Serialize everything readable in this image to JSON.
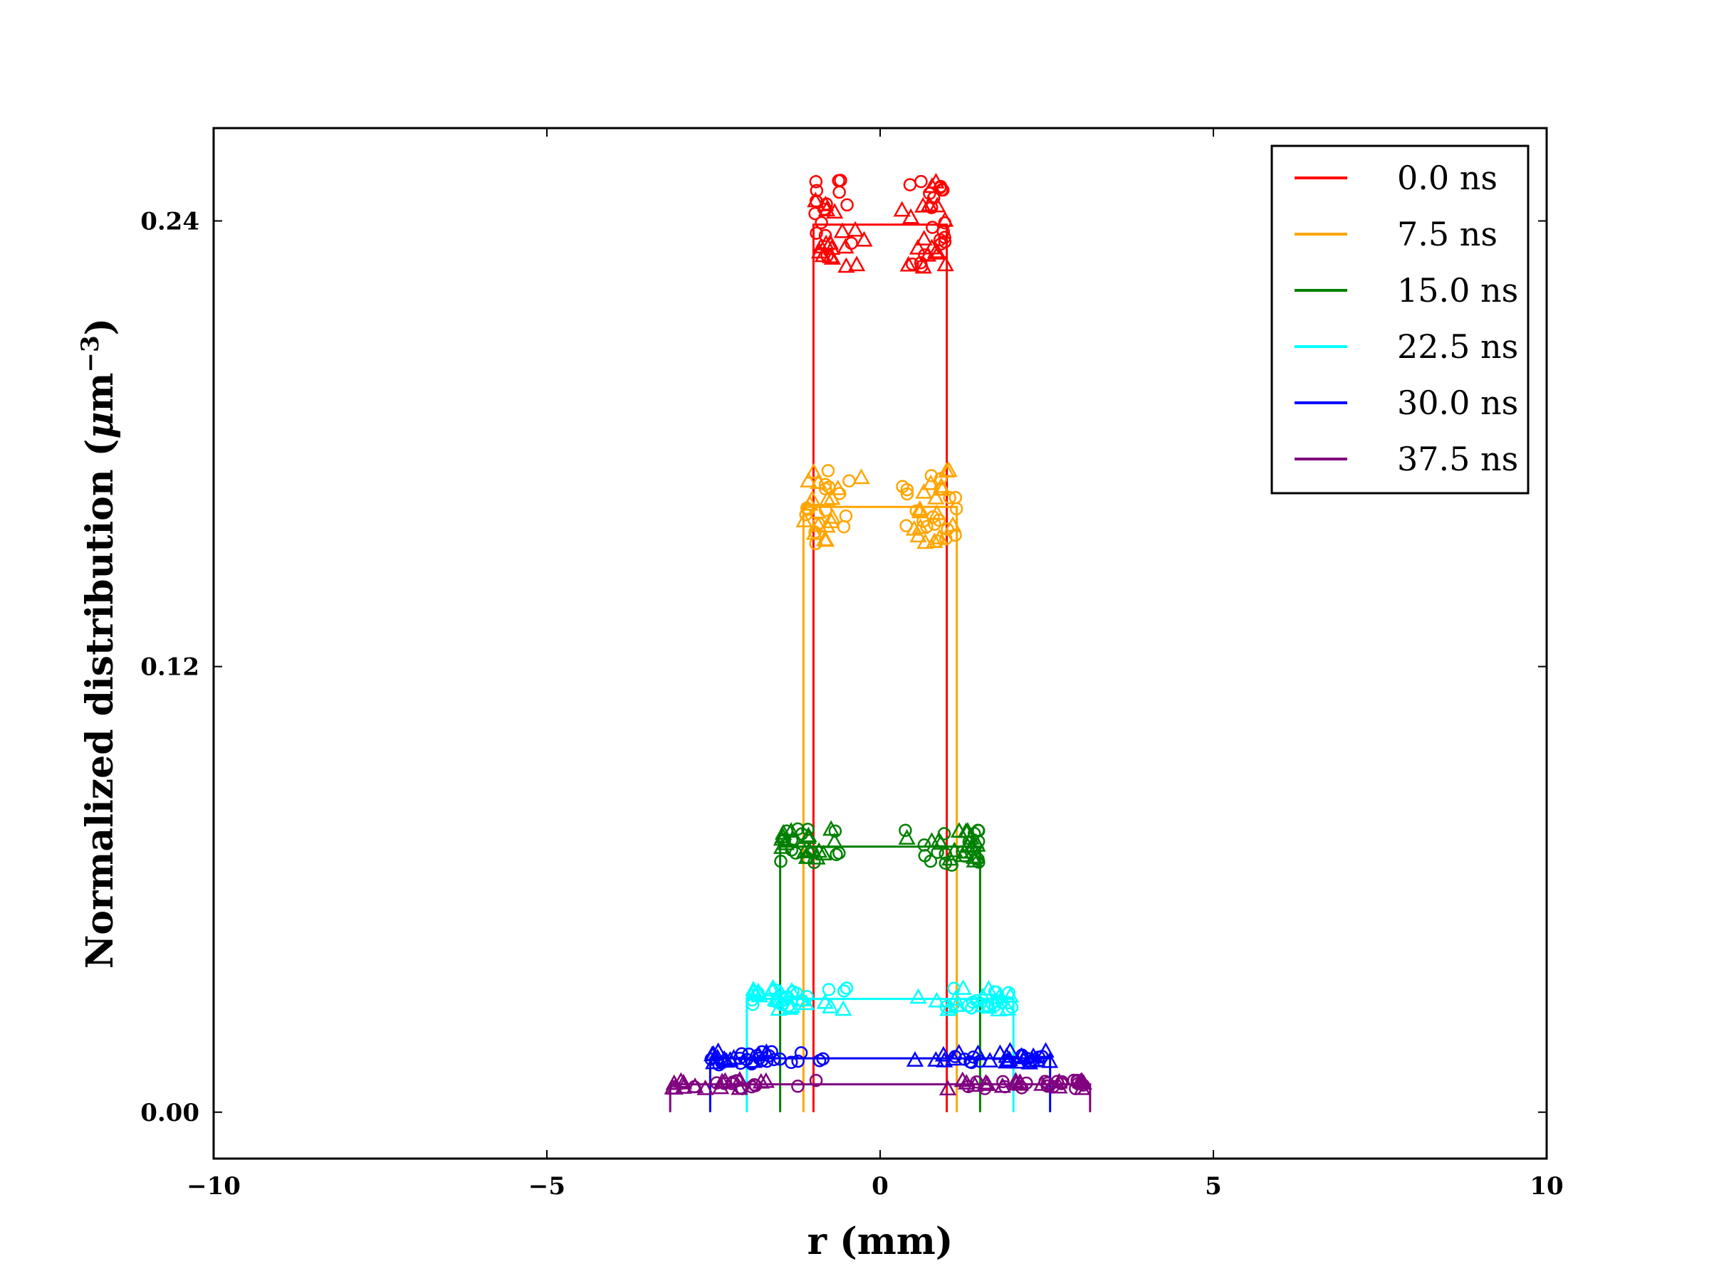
{
  "chart_data": {
    "type": "line",
    "xlabel": "r (mm)",
    "ylabel_main": "Normalized distribution (",
    "ylabel_mu": "μ",
    "ylabel_unit": "m",
    "ylabel_exp": "−3",
    "ylabel_close": ")",
    "xlim": [
      -10,
      10
    ],
    "ylim": [
      -0.0125,
      0.265
    ],
    "x_ticks": [
      -10,
      -5,
      0,
      5,
      10
    ],
    "x_tick_labels": [
      "−10",
      "−5",
      "0",
      "5",
      "10"
    ],
    "y_ticks": [
      0.0,
      0.12,
      0.24
    ],
    "y_tick_labels": [
      "0.00",
      "0.12",
      "0.24"
    ],
    "grid": false,
    "legend_position": "top-right",
    "series": [
      {
        "name": "0.0 ns",
        "color": "#ff0000",
        "half_width": 1.0,
        "height": 0.239,
        "spread": 0.012
      },
      {
        "name": "7.5 ns",
        "color": "#ffa500",
        "half_width": 1.15,
        "height": 0.163,
        "spread": 0.01
      },
      {
        "name": "15.0 ns",
        "color": "#008000",
        "half_width": 1.5,
        "height": 0.0715,
        "spread": 0.005
      },
      {
        "name": "22.5 ns",
        "color": "#00ffff",
        "half_width": 2.0,
        "height": 0.0305,
        "spread": 0.003
      },
      {
        "name": "30.0 ns",
        "color": "#0000ff",
        "half_width": 2.55,
        "height": 0.0145,
        "spread": 0.002
      },
      {
        "name": "37.5 ns",
        "color": "#800080",
        "half_width": 3.15,
        "height": 0.0075,
        "spread": 0.0012
      }
    ]
  }
}
